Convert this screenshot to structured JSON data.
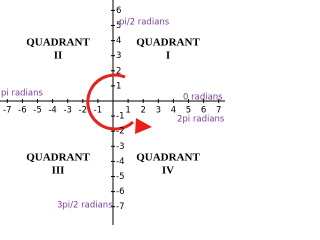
{
  "x_ticks": [
    "-7",
    "-6",
    "-5",
    "-4",
    "-3",
    "-2",
    "-1",
    "1",
    "2",
    "3",
    "4",
    "5",
    "6",
    "7"
  ],
  "y_ticks": [
    "6",
    "5",
    "4",
    "3",
    "2",
    "1",
    "-1",
    "-2",
    "-3",
    "-4",
    "-5",
    "-6",
    "-7"
  ],
  "quadrants": [
    {
      "name": "QUADRANT",
      "numeral": "II"
    },
    {
      "name": "QUADRANT",
      "numeral": "I"
    },
    {
      "name": "QUADRANT",
      "numeral": "III"
    },
    {
      "name": "QUADRANT",
      "numeral": "IV"
    }
  ],
  "angles": [
    "pi/2 radians",
    "pi radians",
    "0 radians",
    "2pi radians",
    "3pi/2 radians"
  ]
}
